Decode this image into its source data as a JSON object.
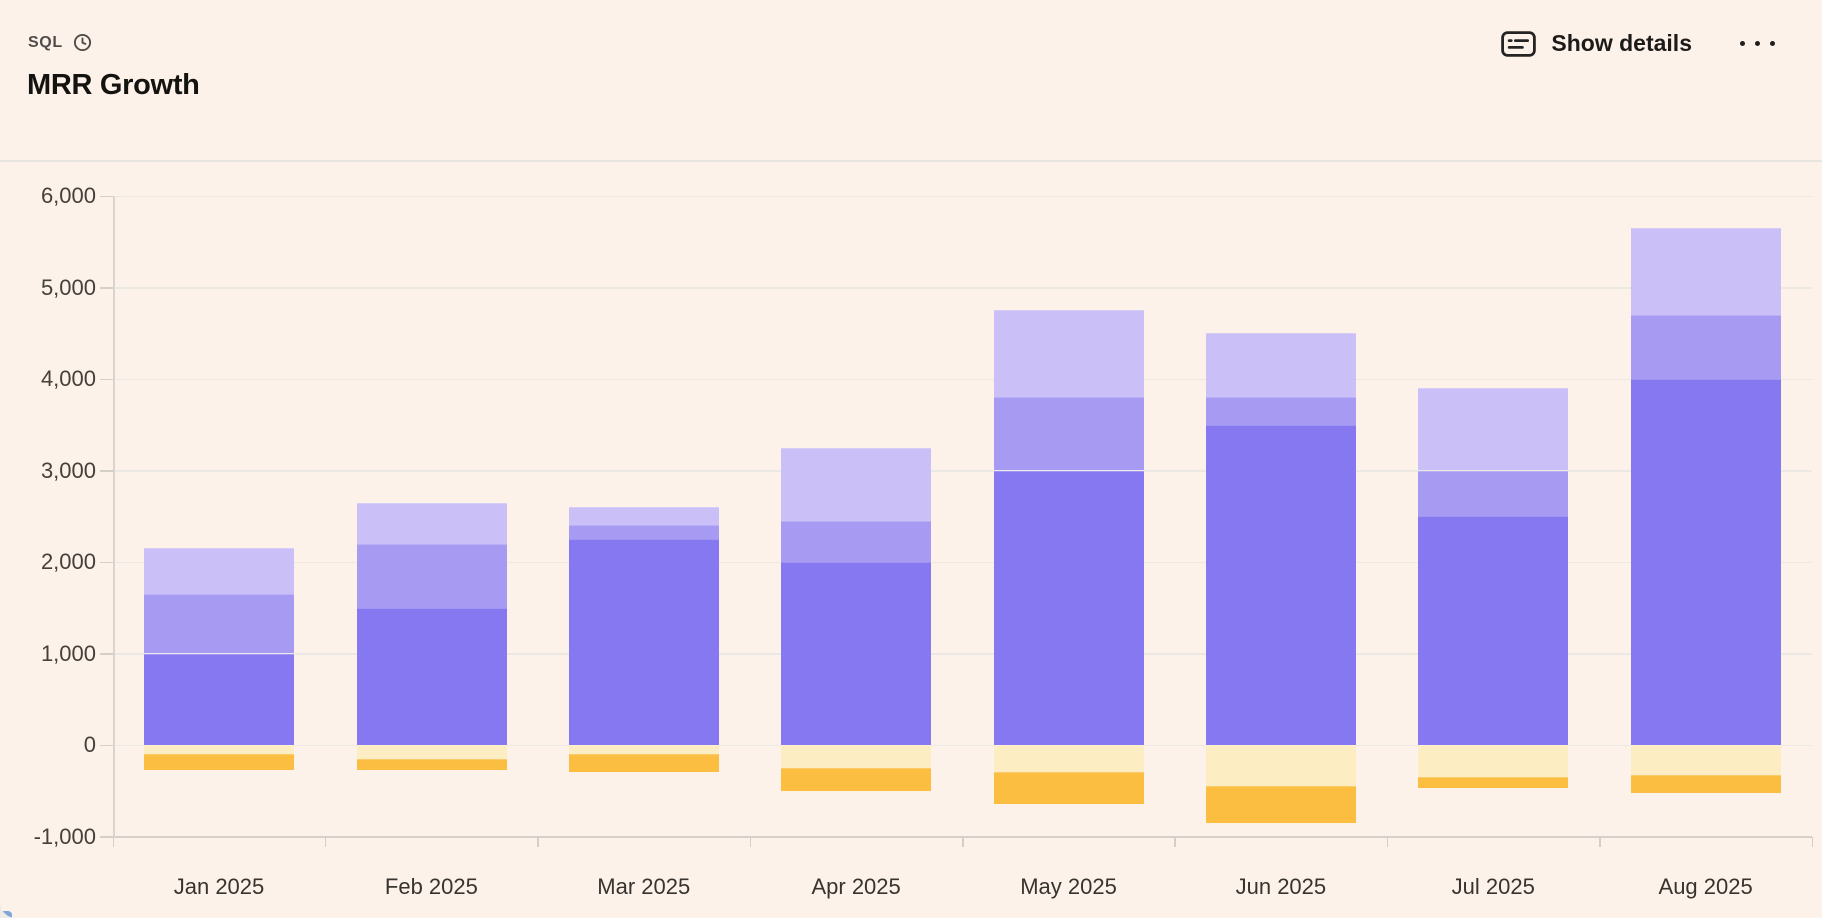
{
  "header": {
    "type_label": "SQL",
    "title": "MRR Growth",
    "show_details_label": "Show details",
    "icons": {
      "clock": "clock-icon",
      "details": "details-card-icon",
      "more": "ellipsis-icon"
    }
  },
  "colors": {
    "card_background": "#fcf2ea",
    "divider": "#e8e4df",
    "gridline": "#ece8e4",
    "axis_line": "#d6d1cb",
    "y_label_text": "#454039",
    "x_label_text": "#37332f",
    "title_text": "#151310",
    "accent_corner": "#7ea6d8",
    "bar_dark_purple": "#8678f0",
    "bar_medium_purple": "#a79af2",
    "bar_light_purple": "#cabff7",
    "bar_pale_yellow": "#fdedc3",
    "bar_amber": "#fcbe40"
  },
  "chart_data": {
    "type": "bar",
    "stacked": true,
    "title": "MRR Growth",
    "xlabel": "",
    "ylabel": "",
    "grid": true,
    "legend_position": "none",
    "categories": [
      "Jan 2025",
      "Feb 2025",
      "Mar 2025",
      "Apr 2025",
      "May 2025",
      "Jun 2025",
      "Jul 2025",
      "Aug 2025"
    ],
    "series": [
      {
        "name": "dark-purple-segment",
        "color": "#8678f0",
        "values": [
          1000,
          1500,
          2250,
          2000,
          3000,
          3500,
          2500,
          4000
        ]
      },
      {
        "name": "medium-purple-segment",
        "color": "#a79af2",
        "values": [
          650,
          700,
          150,
          450,
          800,
          300,
          500,
          700
        ]
      },
      {
        "name": "light-purple-segment",
        "color": "#cabff7",
        "values": [
          500,
          450,
          200,
          800,
          950,
          700,
          900,
          950
        ]
      },
      {
        "name": "pale-yellow-segment",
        "color": "#fdedc3",
        "values": [
          -100,
          -150,
          -100,
          -250,
          -300,
          -450,
          -350,
          -325
        ]
      },
      {
        "name": "amber-segment",
        "color": "#fcbe40",
        "values": [
          -175,
          -125,
          -200,
          -250,
          -350,
          -400,
          -125,
          -200
        ]
      }
    ],
    "positive_totals": [
      2150,
      2650,
      2600,
      3250,
      4750,
      4500,
      3900,
      5650
    ],
    "negative_totals": [
      -275,
      -275,
      -300,
      -500,
      -650,
      -850,
      -475,
      -525
    ],
    "y_axis": {
      "min": -1000,
      "max": 6000,
      "step": 1000,
      "tick_labels": [
        "6,000",
        "5,000",
        "4,000",
        "3,000",
        "2,000",
        "1,000",
        "0",
        "-1,000"
      ]
    }
  }
}
